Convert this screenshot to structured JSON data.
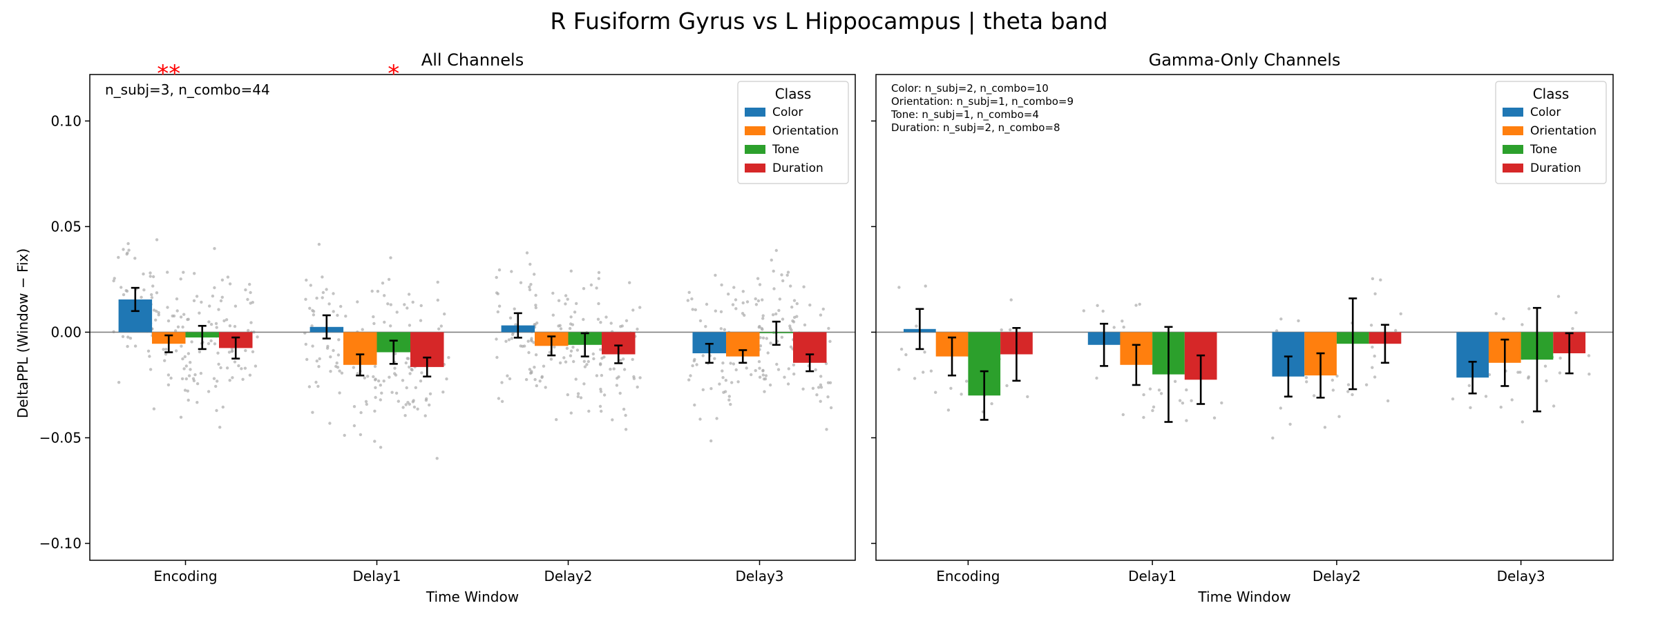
{
  "figure": {
    "title": "R Fusiform Gyrus vs L Hippocampus  |  theta band",
    "ylabel": "DeltaPPL (Window − Fix)"
  },
  "legend": {
    "title": "Class",
    "entries": [
      {
        "name": "Color",
        "color": "#1f77b4"
      },
      {
        "name": "Orientation",
        "color": "#ff7f0e"
      },
      {
        "name": "Tone",
        "color": "#2ca02c"
      },
      {
        "name": "Duration",
        "color": "#d62728"
      }
    ]
  },
  "chart_data": [
    {
      "type": "bar",
      "title": "All Channels",
      "xlabel": "Time Window",
      "ylabel": "DeltaPPL (Window − Fix)",
      "categories": [
        "Encoding",
        "Delay1",
        "Delay2",
        "Delay3"
      ],
      "ylim": [
        -0.108,
        0.122
      ],
      "yticks": [
        -0.1,
        -0.05,
        0.0,
        0.05,
        0.1
      ],
      "ytick_labels": [
        "−0.10",
        "−0.05",
        "0.00",
        "0.05",
        "0.10"
      ],
      "annotation": "n_subj=3, n_combo=44",
      "significance": [
        {
          "category": "Encoding",
          "series": "Orientation",
          "label": "**"
        },
        {
          "category": "Delay1",
          "series": "Tone",
          "label": "*"
        }
      ],
      "series": [
        {
          "name": "Color",
          "values": [
            0.0155,
            0.0025,
            0.0032,
            -0.01
          ],
          "errors": [
            0.0055,
            0.0055,
            0.0058,
            0.0045
          ]
        },
        {
          "name": "Orientation",
          "values": [
            -0.0055,
            -0.0155,
            -0.0065,
            -0.0115
          ],
          "errors": [
            0.004,
            0.005,
            0.0045,
            0.003
          ]
        },
        {
          "name": "Tone",
          "values": [
            -0.0025,
            -0.0095,
            -0.006,
            -0.0005
          ],
          "errors": [
            0.0055,
            0.0055,
            0.0055,
            0.0055
          ]
        },
        {
          "name": "Duration",
          "values": [
            -0.0075,
            -0.0165,
            -0.0105,
            -0.0145
          ],
          "errors": [
            0.005,
            0.0045,
            0.0042,
            0.004
          ]
        }
      ]
    },
    {
      "type": "bar",
      "title": "Gamma-Only Channels",
      "xlabel": "Time Window",
      "categories": [
        "Encoding",
        "Delay1",
        "Delay2",
        "Delay3"
      ],
      "ylim": [
        -0.108,
        0.122
      ],
      "yticks": [
        -0.1,
        -0.05,
        0.0,
        0.05,
        0.1
      ],
      "annotations": [
        "Color: n_subj=2, n_combo=10",
        "Orientation: n_subj=1, n_combo=9",
        "Tone: n_subj=1, n_combo=4",
        "Duration: n_subj=2, n_combo=8"
      ],
      "series": [
        {
          "name": "Color",
          "values": [
            0.0015,
            -0.006,
            -0.021,
            -0.0215
          ],
          "errors": [
            0.0095,
            0.01,
            0.0095,
            0.0075
          ]
        },
        {
          "name": "Orientation",
          "values": [
            -0.0115,
            -0.0155,
            -0.0205,
            -0.0145
          ],
          "errors": [
            0.009,
            0.0095,
            0.0105,
            0.011
          ]
        },
        {
          "name": "Tone",
          "values": [
            -0.03,
            -0.02,
            -0.0055,
            -0.013
          ],
          "errors": [
            0.0115,
            0.0225,
            0.0215,
            0.0245
          ]
        },
        {
          "name": "Duration",
          "values": [
            -0.0105,
            -0.0225,
            -0.0055,
            -0.01
          ],
          "errors": [
            0.0125,
            0.0115,
            0.009,
            0.0095
          ]
        }
      ]
    }
  ]
}
